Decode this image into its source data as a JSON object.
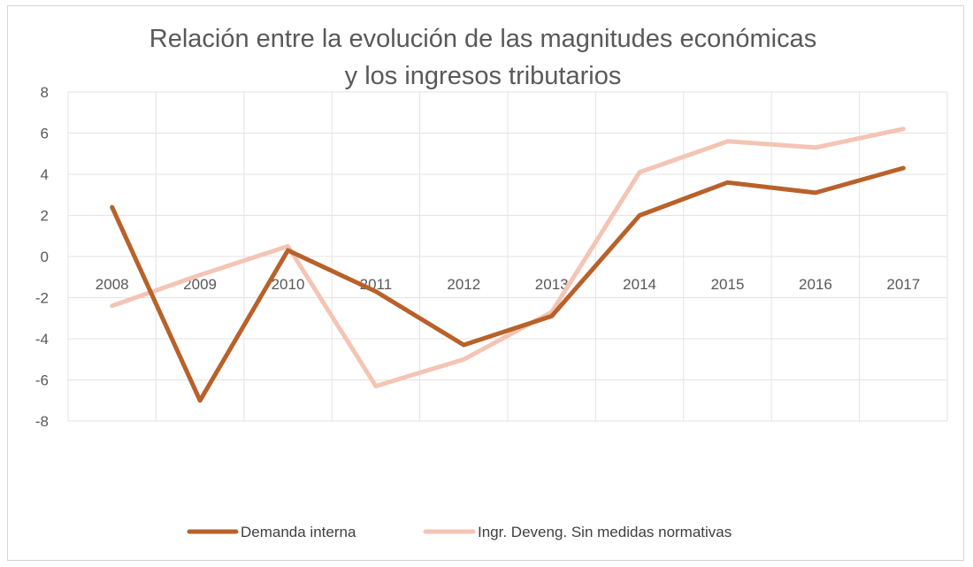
{
  "chart_data": {
    "type": "line",
    "title": "Relación entre la evolución de las magnitudes económicas y los ingresos tributarios",
    "title_lines": [
      "Relación entre la evolución de las magnitudes económicas",
      "y los ingresos tributarios"
    ],
    "categories": [
      "2008",
      "2009",
      "2010",
      "2011",
      "2012",
      "2013",
      "2014",
      "2015",
      "2016",
      "2017"
    ],
    "series": [
      {
        "name": "Demanda interna",
        "color": "#b8612a",
        "values": [
          2.4,
          -7.0,
          0.3,
          -1.7,
          -4.3,
          -2.9,
          2.0,
          3.6,
          3.1,
          4.3
        ]
      },
      {
        "name": "Ingr. Deveng. Sin medidas normativas",
        "color": "#f4c4b4",
        "values": [
          -2.4,
          -0.9,
          0.5,
          -6.3,
          -5.0,
          -2.7,
          4.1,
          5.6,
          5.3,
          6.2
        ]
      }
    ],
    "ylim": [
      -8,
      8
    ],
    "yticks": [
      "8",
      "6",
      "4",
      "2",
      "0",
      "-2",
      "-4",
      "-6",
      "-8"
    ],
    "xlabel": "",
    "ylabel": "",
    "grid": true,
    "legend_position": "bottom"
  }
}
